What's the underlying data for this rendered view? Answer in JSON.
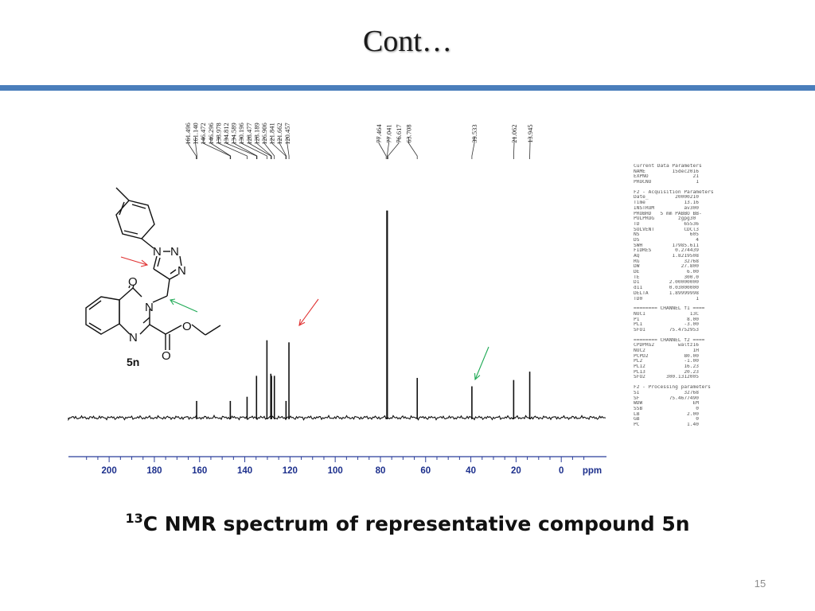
{
  "slide": {
    "title": "Cont…",
    "caption_sup": "13",
    "caption_text": "C NMR spectrum of representative compound 5n",
    "page_number": "15",
    "accent_color": "#4a7ebb"
  },
  "structure": {
    "compound_label": "5n",
    "atom_labels": {
      "n1": "N",
      "n2": "N",
      "n3": "N",
      "n4": "N",
      "n5": "N",
      "o1": "O",
      "o2": "O",
      "o3": "O"
    },
    "arrow_colors": {
      "red": "#e03030",
      "green": "#1faa55"
    }
  },
  "chart_data": {
    "type": "line",
    "title": "",
    "xlabel": "ppm",
    "ylabel": "",
    "x_reversed": true,
    "xlim": [
      218,
      -20
    ],
    "x_ticks": [
      200,
      180,
      160,
      140,
      120,
      100,
      80,
      60,
      40,
      20,
      0
    ],
    "peak_labels": [
      "161.496",
      "161.140",
      "146.472",
      "146.296",
      "138.978",
      "134.812",
      "134.589",
      "130.196",
      "128.477",
      "128.189",
      "126.906",
      "121.841",
      "121.662",
      "120.457",
      "77.464",
      "77.041",
      "76.617",
      "63.708",
      "39.533",
      "21.062",
      "13.945"
    ],
    "peaks": [
      {
        "ppm": 161.3,
        "height": 0.08
      },
      {
        "ppm": 146.4,
        "height": 0.08
      },
      {
        "ppm": 138.98,
        "height": 0.1
      },
      {
        "ppm": 134.81,
        "height": 0.2
      },
      {
        "ppm": 130.2,
        "height": 0.37
      },
      {
        "ppm": 128.48,
        "height": 0.21
      },
      {
        "ppm": 128.19,
        "height": 0.2
      },
      {
        "ppm": 126.91,
        "height": 0.2
      },
      {
        "ppm": 121.75,
        "height": 0.08
      },
      {
        "ppm": 120.46,
        "height": 0.36
      },
      {
        "ppm": 77.04,
        "height": 0.99
      },
      {
        "ppm": 63.71,
        "height": 0.19
      },
      {
        "ppm": 39.53,
        "height": 0.15
      },
      {
        "ppm": 21.06,
        "height": 0.18
      },
      {
        "ppm": 13.95,
        "height": 0.22
      }
    ],
    "annotations": [
      {
        "ppm": 120.46,
        "color": "#e03030"
      },
      {
        "ppm": 39.53,
        "color": "#1faa55"
      }
    ]
  },
  "acquisition_parameters": [
    "Current Data Parameters",
    "NAME         15dec2016",
    "EXPNO               21",
    "PROCNO               1",
    "",
    "F2 - Acquisition Parameters",
    "Date_         20000210",
    "Time             13.16",
    "INSTRUM          av300",
    "PROBHD   5 mm PABBO BB-",
    "PULPROG        zgpg30",
    "TD               65536",
    "SOLVENT          CDCl3",
    "NS                 605",
    "DS                   4",
    "SWH          17985.611",
    "FIDRES        0.274439",
    "AQ           1.8219508",
    "RG               32768",
    "DW              27.800",
    "DE                6.00",
    "TE               300.0",
    "D1          2.00000000",
    "d11         0.03000000",
    "DELTA       1.89999998",
    "TD0                  1",
    "",
    "======== CHANNEL f1 ====",
    "NUC1               13C",
    "P1                8.00",
    "PL1              -3.00",
    "SFO1        75.4752953",
    "",
    "======== CHANNEL f2 ====",
    "CPDPRG2        waltz16",
    "NUC2                1H",
    "PCPD2            80.00",
    "PL2              -1.00",
    "PL12             16.23",
    "PL13             20.23",
    "SFO2       300.1312005",
    "",
    "F2 - Processing parameters",
    "SI               32768",
    "SF          75.4677490",
    "WDW                 EM",
    "SSB                  0",
    "LB                2.00",
    "GB                   0",
    "PC                1.40"
  ]
}
